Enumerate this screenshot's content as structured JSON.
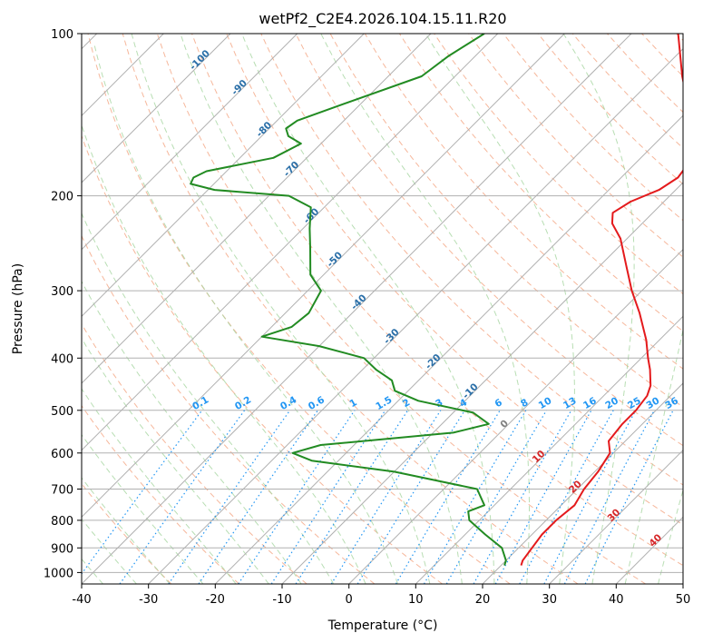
{
  "chart_data": {
    "type": "line",
    "title": "wetPf2_C2E4.2026.104.15.11.R20",
    "xlabel": "Temperature (°C)",
    "ylabel": "Pressure (hPa)",
    "xlim": [
      -40,
      50
    ],
    "ylim": [
      1050,
      100
    ],
    "y_scale": "log",
    "x_ticks": [
      -40,
      -30,
      -20,
      -10,
      0,
      10,
      20,
      30,
      40,
      50
    ],
    "y_ticks": [
      100,
      200,
      300,
      400,
      500,
      600,
      700,
      800,
      900,
      1000
    ],
    "grid": true,
    "skew_degrees": 45,
    "series": [
      {
        "color": "#e41a1c",
        "variable": "temperature",
        "points": [
          {
            "p": 970,
            "t": 23.0
          },
          {
            "p": 950,
            "t": 22.5
          },
          {
            "p": 900,
            "t": 22.0
          },
          {
            "p": 850,
            "t": 21.5
          },
          {
            "p": 800,
            "t": 21.5
          },
          {
            "p": 750,
            "t": 22.0
          },
          {
            "p": 700,
            "t": 21.0
          },
          {
            "p": 650,
            "t": 20.5
          },
          {
            "p": 600,
            "t": 19.5
          },
          {
            "p": 570,
            "t": 17.5
          },
          {
            "p": 530,
            "t": 17.0
          },
          {
            "p": 500,
            "t": 17.0
          },
          {
            "p": 470,
            "t": 16.5
          },
          {
            "p": 450,
            "t": 15.5
          },
          {
            "p": 420,
            "t": 13.0
          },
          {
            "p": 400,
            "t": 11.0
          },
          {
            "p": 370,
            "t": 8.0
          },
          {
            "p": 330,
            "t": 3.0
          },
          {
            "p": 300,
            "t": -1.5
          },
          {
            "p": 270,
            "t": -6.0
          },
          {
            "p": 240,
            "t": -11.0
          },
          {
            "p": 225,
            "t": -14.5
          },
          {
            "p": 215,
            "t": -16.0
          },
          {
            "p": 205,
            "t": -15.0
          },
          {
            "p": 195,
            "t": -12.5
          },
          {
            "p": 185,
            "t": -11.5
          },
          {
            "p": 175,
            "t": -12.0
          },
          {
            "p": 160,
            "t": -14.5
          },
          {
            "p": 140,
            "t": -19.5
          },
          {
            "p": 120,
            "t": -26.0
          },
          {
            "p": 100,
            "t": -33.0
          }
        ]
      },
      {
        "color": "#228b22",
        "variable": "dewpoint",
        "points": [
          {
            "p": 970,
            "t": 20.5
          },
          {
            "p": 950,
            "t": 20.0
          },
          {
            "p": 900,
            "t": 17.5
          },
          {
            "p": 850,
            "t": 13.0
          },
          {
            "p": 800,
            "t": 8.5
          },
          {
            "p": 770,
            "t": 7.0
          },
          {
            "p": 750,
            "t": 8.5
          },
          {
            "p": 700,
            "t": 5.0
          },
          {
            "p": 650,
            "t": -10.0
          },
          {
            "p": 620,
            "t": -24.0
          },
          {
            "p": 600,
            "t": -28.0
          },
          {
            "p": 580,
            "t": -25.0
          },
          {
            "p": 550,
            "t": -7.0
          },
          {
            "p": 530,
            "t": -3.0
          },
          {
            "p": 505,
            "t": -7.0
          },
          {
            "p": 480,
            "t": -17.0
          },
          {
            "p": 460,
            "t": -22.0
          },
          {
            "p": 440,
            "t": -24.0
          },
          {
            "p": 420,
            "t": -28.0
          },
          {
            "p": 400,
            "t": -31.5
          },
          {
            "p": 380,
            "t": -40.0
          },
          {
            "p": 365,
            "t": -50.0
          },
          {
            "p": 350,
            "t": -47.0
          },
          {
            "p": 330,
            "t": -46.5
          },
          {
            "p": 300,
            "t": -48.0
          },
          {
            "p": 280,
            "t": -52.0
          },
          {
            "p": 250,
            "t": -56.0
          },
          {
            "p": 230,
            "t": -59.0
          },
          {
            "p": 210,
            "t": -62.0
          },
          {
            "p": 200,
            "t": -67.0
          },
          {
            "p": 195,
            "t": -79.0
          },
          {
            "p": 190,
            "t": -83.5
          },
          {
            "p": 185,
            "t": -84.0
          },
          {
            "p": 180,
            "t": -83.0
          },
          {
            "p": 170,
            "t": -75.0
          },
          {
            "p": 160,
            "t": -73.0
          },
          {
            "p": 155,
            "t": -76.0
          },
          {
            "p": 150,
            "t": -77.5
          },
          {
            "p": 145,
            "t": -77.0
          },
          {
            "p": 135,
            "t": -72.5
          },
          {
            "p": 120,
            "t": -65.0
          },
          {
            "p": 110,
            "t": -64.0
          },
          {
            "p": 100,
            "t": -62.0
          }
        ]
      }
    ],
    "isotherm_labels": [
      "-100",
      "-90",
      "-80",
      "-70",
      "-60",
      "-50",
      "-40",
      "-30",
      "-20",
      "-10"
    ],
    "mixing_ratio_labels": [
      "0.1",
      "0.2",
      "0.4",
      "0.6",
      "1",
      "1.5",
      "2",
      "3",
      "4",
      "6",
      "8",
      "10",
      "13",
      "16",
      "20",
      "25",
      "30",
      "36"
    ],
    "warm_isotherm_labels": [
      "0",
      "10",
      "20",
      "30",
      "40"
    ],
    "colors": {
      "temperature": "#e41a1c",
      "dewpoint": "#228b22",
      "isotherm_label": "#2a6fa8",
      "mixing_ratio": "#2196f3",
      "warm_label": "#d62728",
      "zero_label": "#808080",
      "dry_adiabat": "#f4a582",
      "moist_adiabat": "#a6d6a0",
      "wet_line": "#dccab0",
      "grid": "#b0b0b0"
    }
  }
}
